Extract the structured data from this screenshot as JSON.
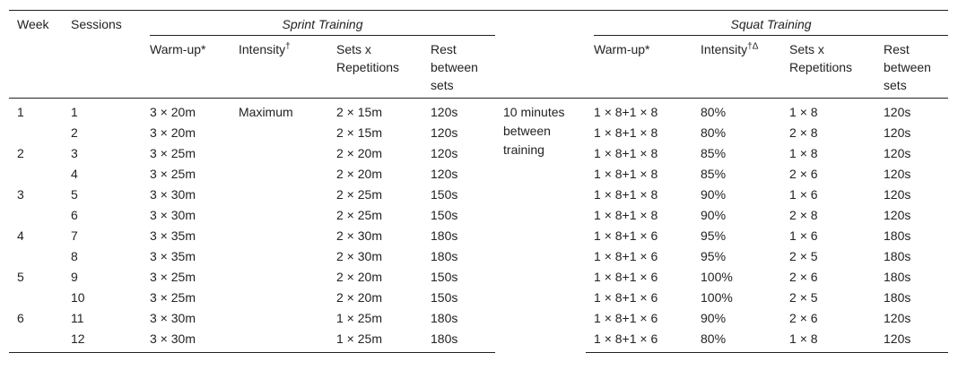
{
  "header": {
    "week": "Week",
    "sessions": "Sessions",
    "sprint_title": "Sprint Training",
    "squat_title": "Squat Training",
    "sprint_cols": {
      "warmup": "Warm-up*",
      "intensity": "Intensity",
      "intensity_sup": "†",
      "sets": "Sets x Repetitions",
      "rest": "Rest between sets"
    },
    "squat_cols": {
      "warmup": "Warm-up*",
      "intensity": "Intensity",
      "intensity_sup": "†Δ",
      "sets": "Sets x Repetitions",
      "rest": "Rest between sets"
    },
    "between_note": "10 minutes between training"
  },
  "rows": [
    {
      "week": "1",
      "session": "1",
      "sp_warm": "3 × 20m",
      "sp_int": "Maximum",
      "sp_sets": "2 × 15m",
      "sp_rest": "120s",
      "sq_warm": "1 × 8+1 × 8",
      "sq_int": "80%",
      "sq_sets": "1 × 8",
      "sq_rest": "120s"
    },
    {
      "week": "",
      "session": "2",
      "sp_warm": "3 × 20m",
      "sp_int": "",
      "sp_sets": "2 × 15m",
      "sp_rest": "120s",
      "sq_warm": "1 × 8+1 × 8",
      "sq_int": "80%",
      "sq_sets": "2 × 8",
      "sq_rest": "120s"
    },
    {
      "week": "2",
      "session": "3",
      "sp_warm": "3 × 25m",
      "sp_int": "",
      "sp_sets": "2 × 20m",
      "sp_rest": "120s",
      "sq_warm": "1 × 8+1 × 8",
      "sq_int": "85%",
      "sq_sets": "1 × 8",
      "sq_rest": "120s"
    },
    {
      "week": "",
      "session": "4",
      "sp_warm": "3 × 25m",
      "sp_int": "",
      "sp_sets": "2 × 20m",
      "sp_rest": "120s",
      "sq_warm": "1 × 8+1 × 8",
      "sq_int": "85%",
      "sq_sets": "2 × 6",
      "sq_rest": "120s"
    },
    {
      "week": "3",
      "session": "5",
      "sp_warm": "3 × 30m",
      "sp_int": "",
      "sp_sets": "2 × 25m",
      "sp_rest": "150s",
      "sq_warm": "1 × 8+1 × 8",
      "sq_int": "90%",
      "sq_sets": "1 × 6",
      "sq_rest": "120s"
    },
    {
      "week": "",
      "session": "6",
      "sp_warm": "3 × 30m",
      "sp_int": "",
      "sp_sets": "2 × 25m",
      "sp_rest": "150s",
      "sq_warm": "1 × 8+1 × 8",
      "sq_int": "90%",
      "sq_sets": "2 × 8",
      "sq_rest": "120s"
    },
    {
      "week": "4",
      "session": "7",
      "sp_warm": "3 × 35m",
      "sp_int": "",
      "sp_sets": "2 × 30m",
      "sp_rest": "180s",
      "sq_warm": "1 × 8+1 × 6",
      "sq_int": "95%",
      "sq_sets": "1 × 6",
      "sq_rest": "180s"
    },
    {
      "week": "",
      "session": "8",
      "sp_warm": "3 × 35m",
      "sp_int": "",
      "sp_sets": "2 × 30m",
      "sp_rest": "180s",
      "sq_warm": "1 × 8+1 × 6",
      "sq_int": "95%",
      "sq_sets": "2 × 5",
      "sq_rest": "180s"
    },
    {
      "week": "5",
      "session": "9",
      "sp_warm": "3 × 25m",
      "sp_int": "",
      "sp_sets": "2 × 20m",
      "sp_rest": "150s",
      "sq_warm": "1 × 8+1 × 6",
      "sq_int": "100%",
      "sq_sets": "2 × 6",
      "sq_rest": "180s"
    },
    {
      "week": "",
      "session": "10",
      "sp_warm": "3 × 25m",
      "sp_int": "",
      "sp_sets": "2 × 20m",
      "sp_rest": "150s",
      "sq_warm": "1 × 8+1 × 6",
      "sq_int": "100%",
      "sq_sets": "2 × 5",
      "sq_rest": "180s"
    },
    {
      "week": "6",
      "session": "11",
      "sp_warm": "3 × 30m",
      "sp_int": "",
      "sp_sets": "1 × 25m",
      "sp_rest": "180s",
      "sq_warm": "1 × 8+1 × 6",
      "sq_int": "90%",
      "sq_sets": "2 × 6",
      "sq_rest": "120s"
    },
    {
      "week": "",
      "session": "12",
      "sp_warm": "3 × 30m",
      "sp_int": "",
      "sp_sets": "1 × 25m",
      "sp_rest": "180s",
      "sq_warm": "1 × 8+1 × 6",
      "sq_int": "80%",
      "sq_sets": "1 × 8",
      "sq_rest": "120s"
    }
  ]
}
